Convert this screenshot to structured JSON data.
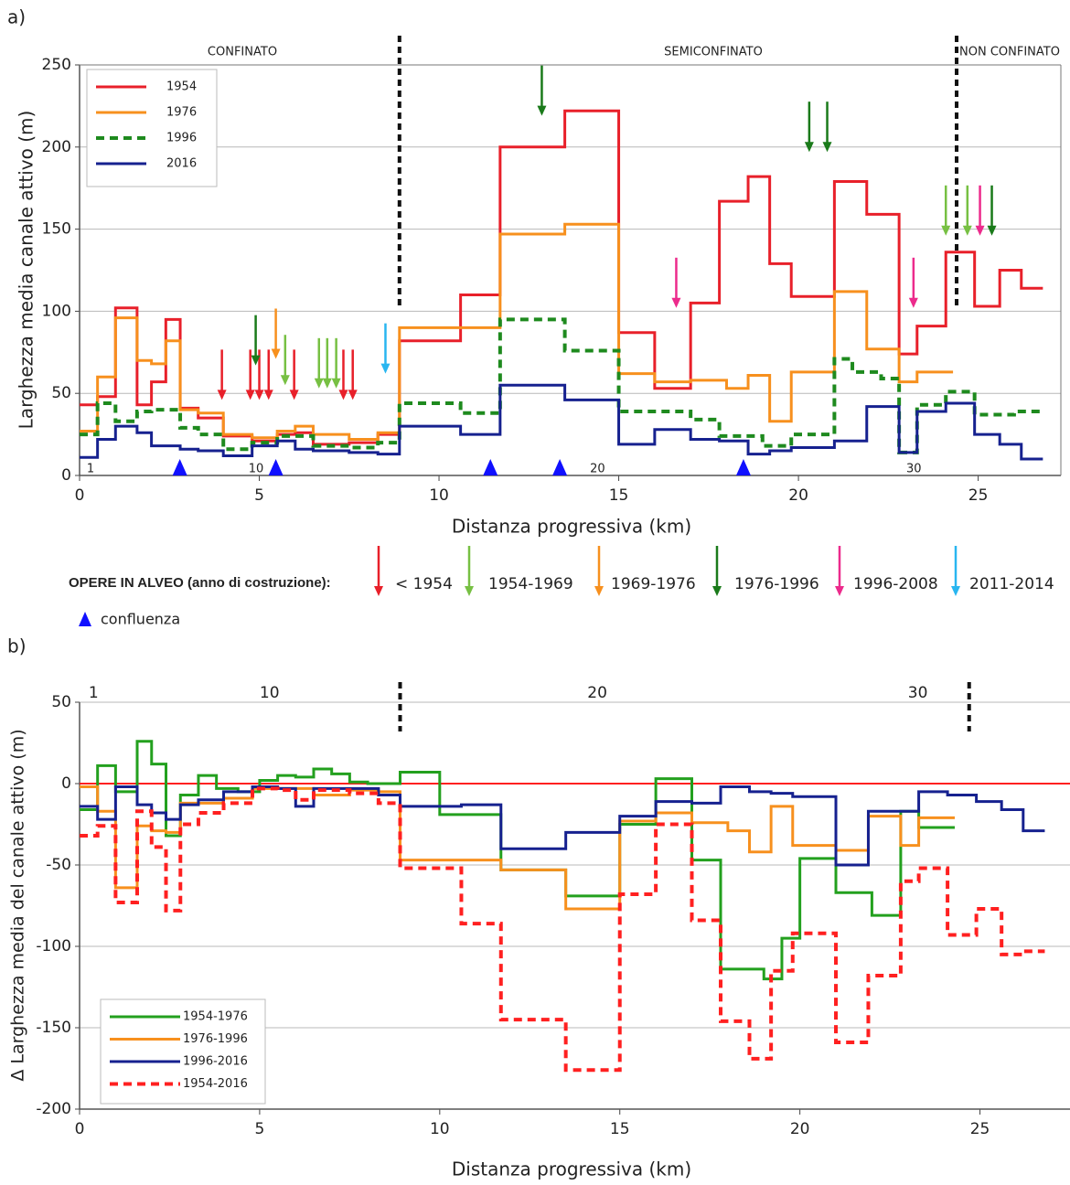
{
  "chart_data": [
    {
      "type": "step",
      "panel_label": "a)",
      "x_label": "Distanza progressiva (km)",
      "y_label": "Larghezza media canale attivo (m)",
      "xlim": [
        0,
        27.3
      ],
      "ylim": [
        0,
        250
      ],
      "xticks": [
        0,
        5,
        10,
        15,
        20,
        25
      ],
      "yticks": [
        0,
        50,
        100,
        150,
        200,
        250
      ],
      "grid": true,
      "legend": "upper left",
      "zone_labels": [
        "CONFINATO",
        "SEMICONFINATO",
        "NON CONFINATO"
      ],
      "zone_boundaries": [
        8.9,
        24.4
      ],
      "section_labels": [
        {
          "x": 0.2,
          "text": "1"
        },
        {
          "x": 4.7,
          "text": "10"
        },
        {
          "x": 14.2,
          "text": "20"
        },
        {
          "x": 23.0,
          "text": "30"
        }
      ],
      "series": [
        {
          "name": "1954",
          "color": "#e8202a",
          "style": "solid",
          "x": [
            0,
            0.5,
            1.0,
            1.6,
            2.0,
            2.4,
            2.8,
            3.3,
            4.0,
            4.8,
            5.5,
            6.0,
            6.5,
            7.5,
            8.3,
            8.9,
            10.6,
            11.7,
            13.5,
            15,
            16,
            17,
            17.8,
            18.6,
            19.2,
            19.8,
            21,
            21.9,
            22.8,
            23.3,
            24.1,
            24.9,
            25.6,
            26.2,
            26.8
          ],
          "values": [
            43,
            48,
            102,
            43,
            57,
            95,
            41,
            35,
            24,
            21,
            25,
            26,
            19,
            20,
            25,
            82,
            110,
            200,
            222,
            87,
            53,
            105,
            167,
            182,
            129,
            109,
            179,
            159,
            74,
            91,
            136,
            103,
            125,
            114,
            114
          ]
        },
        {
          "name": "1976",
          "color": "#f7901e",
          "style": "solid",
          "x": [
            0,
            0.5,
            1.0,
            1.6,
            2.0,
            2.4,
            2.8,
            3.3,
            4.0,
            4.8,
            5.5,
            6.0,
            6.5,
            7.5,
            8.3,
            8.9,
            11.7,
            13.5,
            15,
            16,
            17,
            18,
            18.6,
            19.2,
            19.8,
            21,
            21.9,
            22.8,
            23.3,
            24.3
          ],
          "values": [
            27,
            60,
            96,
            70,
            68,
            82,
            40,
            38,
            25,
            23,
            27,
            30,
            25,
            22,
            26,
            90,
            147,
            153,
            62,
            57,
            58,
            53,
            61,
            33,
            63,
            112,
            77,
            57,
            63,
            63
          ]
        },
        {
          "name": "1996",
          "color": "#1e8a1e",
          "style": "dashed",
          "x": [
            0,
            0.5,
            1.0,
            1.6,
            2.0,
            2.8,
            3.3,
            4.0,
            4.8,
            5.5,
            6.5,
            7.5,
            8.3,
            8.9,
            10.6,
            11.7,
            13.5,
            15,
            17,
            17.8,
            19,
            19.8,
            21,
            21.5,
            22.3,
            22.8,
            23.3,
            24.1,
            24.9,
            26,
            26.8
          ],
          "values": [
            25,
            44,
            33,
            39,
            40,
            29,
            25,
            16,
            20,
            24,
            18,
            17,
            20,
            44,
            38,
            95,
            76,
            39,
            34,
            24,
            18,
            25,
            71,
            63,
            59,
            14,
            43,
            51,
            37,
            39,
            39
          ]
        },
        {
          "name": "2016",
          "color": "#16218f",
          "style": "solid",
          "x": [
            0,
            0.5,
            1.0,
            1.6,
            2.0,
            2.4,
            2.8,
            3.3,
            4.0,
            4.8,
            5.5,
            6.0,
            6.5,
            7.5,
            8.3,
            8.9,
            10.6,
            11.7,
            13.5,
            15,
            16,
            17,
            17.8,
            18.6,
            19.2,
            19.8,
            21,
            21.9,
            22.8,
            23.3,
            24.1,
            24.9,
            25.6,
            26.2,
            26.8
          ],
          "values": [
            11,
            22,
            30,
            26,
            18,
            18,
            16,
            15,
            12,
            18,
            21,
            16,
            15,
            14,
            13,
            30,
            25,
            55,
            46,
            19,
            28,
            22,
            21,
            13,
            15,
            17,
            21,
            42,
            14,
            39,
            44,
            25,
            19,
            10,
            10
          ]
        }
      ],
      "works_legend": {
        "title": "OPERE IN ALVEO (anno di costruzione):",
        "categories": [
          {
            "name": "< 1954",
            "color": "#e8202a",
            "x": [
              3.96,
              4.75,
              5.0,
              5.26,
              5.97,
              7.34,
              7.6
            ],
            "y": [
              46,
              46,
              46,
              46,
              46,
              46,
              46
            ]
          },
          {
            "name": "1954-1969",
            "color": "#77c043",
            "x": [
              5.72,
              6.66,
              6.89,
              7.14,
              24.1,
              24.7
            ],
            "y": [
              55,
              53,
              53,
              53,
              146,
              146
            ]
          },
          {
            "name": "1969-1976",
            "color": "#f7901e",
            "x": [
              5.46
            ],
            "y": [
              71
            ]
          },
          {
            "name": "1976-1996",
            "color": "#1a7a1a",
            "x": [
              4.9,
              12.86,
              20.3,
              20.8,
              25.38
            ],
            "y": [
              67,
              219,
              197,
              197,
              146
            ]
          },
          {
            "name": "1996-2008",
            "color": "#ec2b8c",
            "x": [
              16.6,
              23.2,
              25.05
            ],
            "y": [
              102,
              102,
              146
            ]
          },
          {
            "name": "2011-2014",
            "color": "#29b6f0",
            "x": [
              8.51
            ],
            "y": [
              62
            ]
          }
        ]
      },
      "confluence_label": "confluenza",
      "confluences": [
        2.79,
        5.46,
        11.43,
        13.36,
        18.47
      ]
    },
    {
      "type": "step",
      "panel_label": "b)",
      "x_label": "Distanza progressiva (km)",
      "y_label": "Δ Larghezza media del canale attivo (m)",
      "xlim": [
        0,
        27.5
      ],
      "ylim": [
        -200,
        50
      ],
      "xticks": [
        0,
        5,
        10,
        15,
        20,
        25
      ],
      "yticks": [
        -200,
        -150,
        -100,
        -50,
        0,
        50
      ],
      "grid": true,
      "legend": "lower left",
      "reference_line": 0,
      "reference_color": "#ff2020",
      "zone_boundaries": [
        8.9,
        24.7
      ],
      "section_labels": [
        {
          "x": 0.25,
          "text": "1"
        },
        {
          "x": 5.0,
          "text": "10"
        },
        {
          "x": 14.1,
          "text": "20"
        },
        {
          "x": 23.0,
          "text": "30"
        }
      ],
      "series": [
        {
          "name": "1954-1976",
          "color": "#23a01e",
          "style": "solid",
          "x": [
            0,
            0.5,
            1.0,
            1.6,
            2.0,
            2.4,
            2.8,
            3.3,
            3.8,
            4.4,
            5.0,
            5.5,
            6.0,
            6.5,
            7.0,
            7.5,
            8.0,
            8.9,
            10.0,
            11.7,
            13.5,
            15,
            16,
            17,
            17.8,
            19,
            19.5,
            20,
            21,
            22,
            22.8,
            23.3,
            24.3
          ],
          "values": [
            -16,
            11,
            -5,
            26,
            12,
            -32,
            -7,
            5,
            -3,
            -5,
            2,
            5,
            4,
            9,
            6,
            1,
            0,
            7,
            -19,
            -53,
            -69,
            -25,
            3,
            -47,
            -114,
            -120,
            -95,
            -46,
            -67,
            -81,
            -17,
            -27,
            -27
          ]
        },
        {
          "name": "1976-1996",
          "color": "#f7901e",
          "style": "solid",
          "x": [
            0,
            0.5,
            1.0,
            1.6,
            2.0,
            2.4,
            2.8,
            3.3,
            4.0,
            4.8,
            5.5,
            6.0,
            6.5,
            7.5,
            8.3,
            8.9,
            11.7,
            13.5,
            15,
            16,
            17,
            18,
            18.6,
            19.2,
            19.8,
            21,
            21.9,
            22.8,
            23.3,
            24.3
          ],
          "values": [
            -2,
            -17,
            -64,
            -26,
            -29,
            -30,
            -12,
            -12,
            -9,
            -3,
            -3,
            -3,
            -7,
            -4,
            -5,
            -47,
            -53,
            -77,
            -23,
            -18,
            -24,
            -29,
            -42,
            -14,
            -38,
            -41,
            -20,
            -38,
            -21,
            -21
          ]
        },
        {
          "name": "1996-2016",
          "color": "#16218f",
          "style": "solid",
          "x": [
            0,
            0.5,
            1.0,
            1.6,
            2.0,
            2.4,
            2.8,
            3.3,
            4.0,
            4.8,
            5.5,
            6.0,
            6.5,
            7.5,
            8.3,
            8.9,
            10.6,
            11.7,
            13.5,
            15,
            16,
            17,
            17.8,
            18.6,
            19.2,
            19.8,
            21,
            21.9,
            22.8,
            23.3,
            24.1,
            24.9,
            25.6,
            26.2,
            26.8
          ],
          "values": [
            -14,
            -22,
            -2,
            -13,
            -18,
            -22,
            -13,
            -10,
            -5,
            -2,
            -3,
            -14,
            -3,
            -3,
            -7,
            -14,
            -13,
            -40,
            -30,
            -20,
            -11,
            -12,
            -2,
            -5,
            -6,
            -8,
            -50,
            -17,
            -17,
            -5,
            -7,
            -11,
            -16,
            -29,
            -29
          ]
        },
        {
          "name": "1954-2016",
          "color": "#ff2020",
          "style": "dashed",
          "x": [
            0,
            0.5,
            1.0,
            1.6,
            2.0,
            2.4,
            2.8,
            3.3,
            4.0,
            4.8,
            5.5,
            6.0,
            6.5,
            7.5,
            8.3,
            8.9,
            10.6,
            11.7,
            13.5,
            15,
            16,
            17,
            17.8,
            18.6,
            19.2,
            19.8,
            21,
            21.9,
            22.8,
            23.3,
            24.1,
            24.9,
            25.6,
            26.2,
            26.8
          ],
          "values": [
            -32,
            -26,
            -73,
            -17,
            -39,
            -78,
            -25,
            -18,
            -12,
            -3,
            -4,
            -10,
            -4,
            -6,
            -12,
            -52,
            -86,
            -145,
            -176,
            -68,
            -25,
            -84,
            -146,
            -169,
            -115,
            -92,
            -159,
            -118,
            -60,
            -52,
            -93,
            -77,
            -105,
            -103,
            -103
          ]
        }
      ]
    }
  ]
}
